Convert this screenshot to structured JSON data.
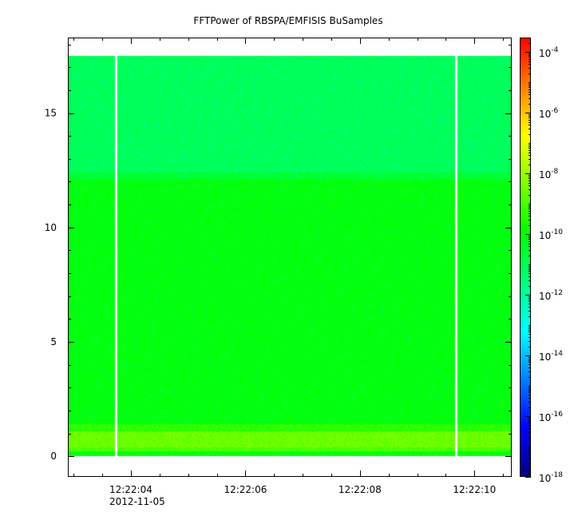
{
  "chart_data": {
    "type": "heatmap",
    "title": "FFTPower of RBSPA/EMFISIS  BuSamples",
    "xlabel": "",
    "ylabel": "",
    "x_axis": {
      "range": [
        "12:22:02.900",
        "12:22:10.650"
      ],
      "tick_labels": [
        "12:22:04",
        "12:22:06",
        "12:22:08",
        "12:22:10"
      ],
      "tick_values_s": [
        4,
        6,
        8,
        10
      ],
      "date_label": "2012-11-05"
    },
    "y_axis": {
      "ylim": [
        -0.9,
        18.3
      ],
      "ticks": [
        0,
        5,
        10,
        15
      ]
    },
    "colorbar": {
      "scale": "log",
      "range": [
        1e-18,
        0.0003
      ],
      "tick_labels": [
        {
          "base": "10",
          "exp": "-4",
          "value": 0.0001
        },
        {
          "base": "10",
          "exp": "-6",
          "value": 1e-06
        },
        {
          "base": "10",
          "exp": "-8",
          "value": 1e-08
        },
        {
          "base": "10",
          "exp": "-10",
          "value": 1e-10
        },
        {
          "base": "10",
          "exp": "-12",
          "value": 1e-12
        },
        {
          "base": "10",
          "exp": "-14",
          "value": 1e-14
        },
        {
          "base": "10",
          "exp": "-16",
          "value": 1e-16
        },
        {
          "base": "10",
          "exp": "-18",
          "value": 1e-18
        }
      ]
    },
    "data_extent": {
      "y_min": -0.05,
      "y_max": 17.5
    },
    "bands": [
      {
        "y_from": 0.0,
        "y_to": 0.2,
        "log10_power": -10.0
      },
      {
        "y_from": 0.2,
        "y_to": 0.4,
        "log10_power": -9.0
      },
      {
        "y_from": 0.4,
        "y_to": 1.1,
        "log10_power": -8.6
      },
      {
        "y_from": 1.1,
        "y_to": 1.4,
        "log10_power": -9.4
      },
      {
        "y_from": 1.4,
        "y_to": 12.1,
        "log10_power": -10.1
      },
      {
        "y_from": 12.1,
        "y_to": 12.4,
        "log10_power": -10.6
      },
      {
        "y_from": 12.4,
        "y_to": 17.5,
        "log10_power": -11.1
      }
    ],
    "gaps_s": [
      3.73,
      9.68
    ],
    "noise_amplitude_log10": 0.45,
    "colors": {
      "background": "#ffffff",
      "gap": "#ffffff",
      "colormap": [
        "#00007f",
        "#0000ff",
        "#0080ff",
        "#00ffff",
        "#00ff80",
        "#00ff00",
        "#80ff00",
        "#ffff00",
        "#ff8000",
        "#ff0000"
      ]
    }
  }
}
